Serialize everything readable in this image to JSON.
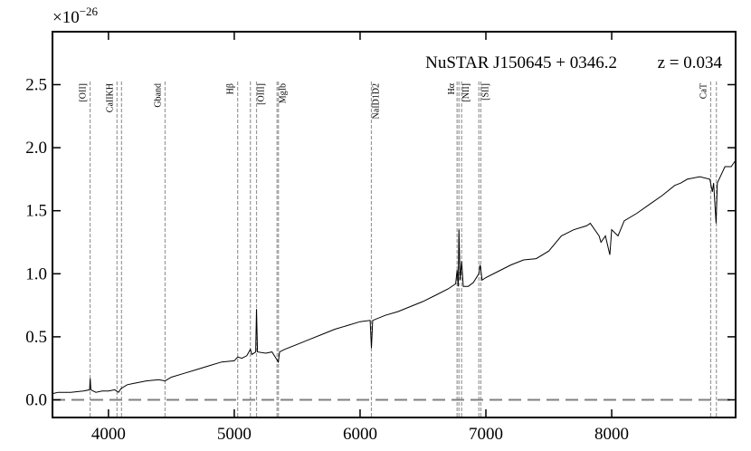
{
  "chart_data": {
    "type": "line",
    "title": "NuSTAR J150645 + 0346.2",
    "subtitle": "z = 0.034",
    "offset_base": "×10",
    "offset_exp": "−26",
    "color": "#000000",
    "x": [
      3560,
      3600,
      3700,
      3800,
      3850,
      3855,
      3860,
      3900,
      3950,
      4000,
      4050,
      4080,
      4100,
      4150,
      4200,
      4300,
      4400,
      4450,
      4500,
      4600,
      4700,
      4800,
      4900,
      5000,
      5027,
      5060,
      5100,
      5128,
      5140,
      5170,
      5177,
      5185,
      5250,
      5300,
      5350,
      5360,
      5400,
      5500,
      5600,
      5700,
      5800,
      5900,
      6000,
      6080,
      6090,
      6100,
      6200,
      6300,
      6400,
      6500,
      6600,
      6700,
      6760,
      6771,
      6780,
      6786,
      6795,
      6807,
      6820,
      6860,
      6900,
      6944,
      6955,
      6970,
      7000,
      7100,
      7200,
      7300,
      7400,
      7500,
      7600,
      7700,
      7800,
      7830,
      7900,
      7915,
      7950,
      7985,
      8000,
      8050,
      8100,
      8200,
      8300,
      8400,
      8500,
      8550,
      8600,
      8700,
      8780,
      8800,
      8810,
      8830,
      8840,
      8900,
      8950,
      8985
    ],
    "values": [
      0.05,
      0.06,
      0.06,
      0.07,
      0.08,
      0.17,
      0.08,
      0.06,
      0.07,
      0.07,
      0.08,
      0.06,
      0.09,
      0.12,
      0.13,
      0.15,
      0.16,
      0.15,
      0.18,
      0.21,
      0.24,
      0.27,
      0.3,
      0.31,
      0.34,
      0.33,
      0.35,
      0.4,
      0.36,
      0.38,
      0.72,
      0.38,
      0.37,
      0.38,
      0.3,
      0.38,
      0.4,
      0.44,
      0.48,
      0.52,
      0.56,
      0.59,
      0.62,
      0.63,
      0.41,
      0.63,
      0.67,
      0.7,
      0.74,
      0.78,
      0.83,
      0.88,
      0.92,
      1.03,
      0.9,
      1.35,
      0.95,
      1.1,
      0.9,
      0.9,
      0.93,
      1.0,
      1.07,
      0.95,
      0.97,
      1.02,
      1.07,
      1.11,
      1.12,
      1.18,
      1.3,
      1.35,
      1.38,
      1.4,
      1.3,
      1.25,
      1.3,
      1.15,
      1.35,
      1.3,
      1.42,
      1.48,
      1.55,
      1.62,
      1.7,
      1.72,
      1.75,
      1.77,
      1.75,
      1.65,
      1.72,
      1.4,
      1.72,
      1.85,
      1.85,
      1.9
    ],
    "hline": 0,
    "xlim": [
      3555,
      8985
    ],
    "ylim": [
      -0.14,
      2.92
    ],
    "xticks": [
      4000,
      5000,
      6000,
      7000,
      8000
    ],
    "yticks": [
      {
        "value": 0,
        "label": "0.0"
      },
      0.5,
      {
        "value": 1,
        "label": "1.0"
      },
      1.5,
      {
        "value": 2,
        "label": "2.0"
      },
      2.5
    ],
    "lines": [
      {
        "label": "[OII]",
        "wavelengths": [
          3854
        ],
        "label_side": "left"
      },
      {
        "label": "CaIIKH",
        "wavelengths": [
          4068,
          4104
        ],
        "label_side": "left"
      },
      {
        "label": "Gband",
        "wavelengths": [
          4450
        ],
        "label_side": "left"
      },
      {
        "label": "Hβ",
        "wavelengths": [
          5027
        ],
        "label_side": "left"
      },
      {
        "label": "[OIII]",
        "wavelengths": [
          5128,
          5177
        ],
        "label_side": "right"
      },
      {
        "label": "MgIb",
        "wavelengths": [
          5340,
          5351
        ],
        "label_side": "right"
      },
      {
        "label": "NaID1D2",
        "wavelengths": [
          6090
        ],
        "label_side": "right"
      },
      {
        "label": "Hα",
        "wavelengths": [
          6786
        ],
        "label_side": "left"
      },
      {
        "label": "[NII]",
        "wavelengths": [
          6771,
          6807
        ],
        "label_side": "right"
      },
      {
        "label": "[SII]",
        "wavelengths": [
          6944,
          6960
        ],
        "label_side": "right"
      },
      {
        "label": "CaT",
        "wavelengths": [
          8787,
          8832
        ],
        "label_side": "left"
      }
    ]
  }
}
